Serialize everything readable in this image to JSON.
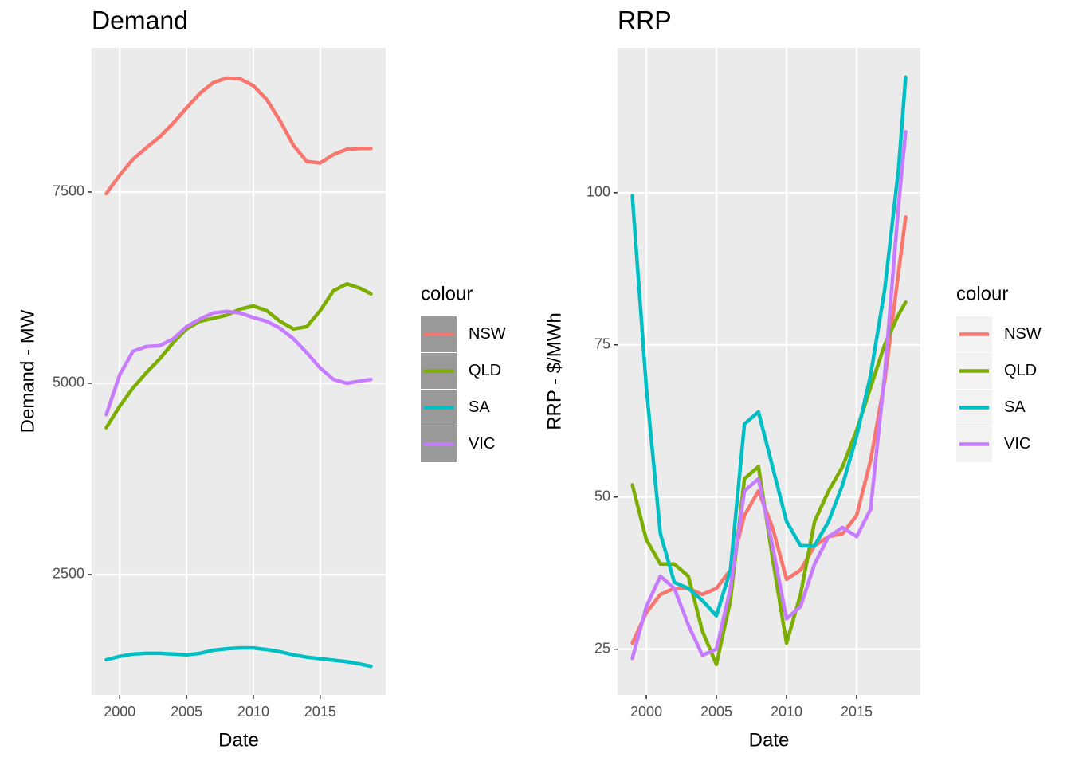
{
  "chart_data": [
    {
      "type": "line",
      "title": "Demand",
      "x_label": "Date",
      "y_label": "Demand - MW",
      "x": [
        1999,
        2000,
        2001,
        2002,
        2003,
        2004,
        2005,
        2006,
        2007,
        2008,
        2009,
        2010,
        2011,
        2012,
        2013,
        2014,
        2015,
        2016,
        2017,
        2018,
        2018.8
      ],
      "series": [
        {
          "name": "NSW",
          "color": "#F8766D",
          "values": [
            7480,
            7720,
            7930,
            8080,
            8220,
            8400,
            8600,
            8790,
            8930,
            8990,
            8980,
            8890,
            8710,
            8430,
            8110,
            7900,
            7880,
            7990,
            8060,
            8070,
            8070
          ]
        },
        {
          "name": "QLD",
          "color": "#7CAE00",
          "values": [
            4420,
            4700,
            4940,
            5140,
            5320,
            5530,
            5710,
            5810,
            5850,
            5890,
            5970,
            6010,
            5950,
            5810,
            5710,
            5740,
            5950,
            6210,
            6300,
            6240,
            6170
          ]
        },
        {
          "name": "SA",
          "color": "#00BFC4",
          "values": [
            1385,
            1430,
            1460,
            1470,
            1470,
            1460,
            1450,
            1470,
            1510,
            1530,
            1540,
            1540,
            1520,
            1490,
            1450,
            1420,
            1400,
            1380,
            1360,
            1330,
            1300
          ]
        },
        {
          "name": "VIC",
          "color": "#C77CFF",
          "values": [
            4590,
            5110,
            5420,
            5480,
            5490,
            5580,
            5740,
            5840,
            5920,
            5940,
            5920,
            5860,
            5810,
            5720,
            5580,
            5400,
            5200,
            5050,
            5000,
            5030,
            5050
          ]
        }
      ],
      "xlim": [
        1997.9,
        2019.9
      ],
      "xticks": [
        2000,
        2005,
        2010,
        2015
      ],
      "ylim": [
        927,
        9385
      ],
      "yticks": [
        2500,
        5000,
        7500
      ],
      "grid": true,
      "legend_title": "colour",
      "legend_position": "right",
      "legend_key_fill": "#999999"
    },
    {
      "type": "line",
      "title": "RRP",
      "x_label": "Date",
      "y_label": "RRP - $/MWh",
      "x": [
        1999,
        2000,
        2001,
        2002,
        2003,
        2004,
        2005,
        2006,
        2007,
        2008,
        2009,
        2010,
        2011,
        2012,
        2013,
        2014,
        2015,
        2016,
        2017,
        2018,
        2018.5
      ],
      "series": [
        {
          "name": "NSW",
          "color": "#F8766D",
          "values": [
            26,
            31,
            34,
            35,
            35,
            34,
            35,
            38,
            47,
            51,
            45,
            36.5,
            38,
            42,
            43.5,
            44,
            47,
            56,
            69,
            87,
            96
          ]
        },
        {
          "name": "QLD",
          "color": "#7CAE00",
          "values": [
            52,
            43,
            39,
            39,
            37,
            28,
            22.5,
            33,
            53,
            55,
            40,
            26,
            34,
            46,
            51,
            55,
            61,
            68,
            75,
            80,
            82
          ]
        },
        {
          "name": "SA",
          "color": "#00BFC4",
          "values": [
            99.5,
            68,
            44,
            36,
            35,
            33,
            30.5,
            38,
            62,
            64,
            55,
            46,
            42,
            42,
            46,
            52,
            60,
            70,
            84,
            104,
            119
          ]
        },
        {
          "name": "VIC",
          "color": "#C77CFF",
          "values": [
            23.5,
            32,
            37,
            35,
            29,
            24,
            25,
            35,
            51,
            53,
            42,
            30,
            32,
            39,
            43.5,
            45,
            43.5,
            48,
            70,
            98,
            110
          ]
        }
      ],
      "xlim": [
        1997.95,
        2019.55
      ],
      "xticks": [
        2000,
        2005,
        2010,
        2015
      ],
      "ylim": [
        17.5,
        123.8
      ],
      "yticks": [
        25,
        50,
        75,
        100
      ],
      "grid": true,
      "legend_title": "colour",
      "legend_position": "right",
      "legend_key_fill": "#F2F2F2"
    }
  ]
}
